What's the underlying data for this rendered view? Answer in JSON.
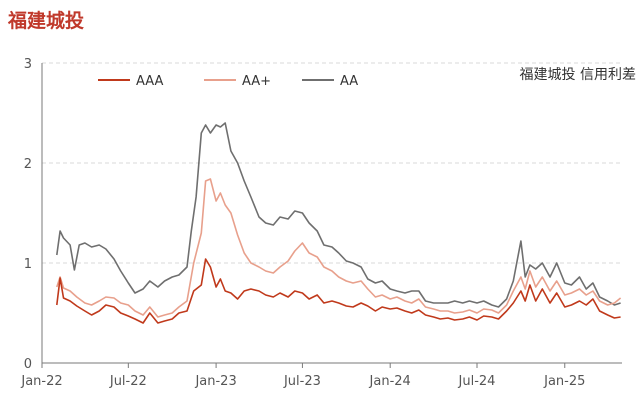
{
  "header": {
    "title": "福建城投"
  },
  "chart_data": {
    "type": "line",
    "title": "",
    "annotation": "福建城投 信用利差",
    "xlabel": "",
    "ylabel": "",
    "ylim": [
      0,
      3
    ],
    "y_ticks": [
      "0",
      "1",
      "2",
      "3"
    ],
    "x_ticks": [
      "Jan-22",
      "Jul-22",
      "Jan-23",
      "Jul-23",
      "Jan-24",
      "Jul-24",
      "Jan-25"
    ],
    "x_tick_dates": [
      "2022-01-01",
      "2022-07-01",
      "2023-01-01",
      "2023-07-01",
      "2024-01-01",
      "2024-07-01",
      "2025-01-01"
    ],
    "xlim": [
      "2022-01-01",
      "2025-05-01"
    ],
    "grid": "horizontal dashed",
    "legend": "top",
    "series": [
      {
        "name": "AAA",
        "color": "#c0391b",
        "points": [
          [
            "2022-02-01",
            0.58
          ],
          [
            "2022-02-08",
            0.85
          ],
          [
            "2022-02-15",
            0.65
          ],
          [
            "2022-03-01",
            0.62
          ],
          [
            "2022-03-15",
            0.57
          ],
          [
            "2022-04-01",
            0.52
          ],
          [
            "2022-04-15",
            0.48
          ],
          [
            "2022-05-01",
            0.52
          ],
          [
            "2022-05-15",
            0.58
          ],
          [
            "2022-06-01",
            0.56
          ],
          [
            "2022-06-15",
            0.5
          ],
          [
            "2022-07-01",
            0.47
          ],
          [
            "2022-07-15",
            0.44
          ],
          [
            "2022-08-01",
            0.4
          ],
          [
            "2022-08-15",
            0.5
          ],
          [
            "2022-09-01",
            0.4
          ],
          [
            "2022-09-15",
            0.42
          ],
          [
            "2022-10-01",
            0.44
          ],
          [
            "2022-10-15",
            0.5
          ],
          [
            "2022-11-01",
            0.52
          ],
          [
            "2022-11-15",
            0.72
          ],
          [
            "2022-12-01",
            0.78
          ],
          [
            "2022-12-10",
            1.04
          ],
          [
            "2022-12-20",
            0.96
          ],
          [
            "2023-01-01",
            0.76
          ],
          [
            "2023-01-10",
            0.84
          ],
          [
            "2023-01-20",
            0.72
          ],
          [
            "2023-02-01",
            0.7
          ],
          [
            "2023-02-15",
            0.64
          ],
          [
            "2023-03-01",
            0.72
          ],
          [
            "2023-03-15",
            0.74
          ],
          [
            "2023-04-01",
            0.72
          ],
          [
            "2023-04-15",
            0.68
          ],
          [
            "2023-05-01",
            0.66
          ],
          [
            "2023-05-15",
            0.7
          ],
          [
            "2023-06-01",
            0.66
          ],
          [
            "2023-06-15",
            0.72
          ],
          [
            "2023-07-01",
            0.7
          ],
          [
            "2023-07-15",
            0.64
          ],
          [
            "2023-08-01",
            0.68
          ],
          [
            "2023-08-15",
            0.6
          ],
          [
            "2023-09-01",
            0.62
          ],
          [
            "2023-09-15",
            0.6
          ],
          [
            "2023-10-01",
            0.57
          ],
          [
            "2023-10-15",
            0.56
          ],
          [
            "2023-11-01",
            0.6
          ],
          [
            "2023-11-15",
            0.57
          ],
          [
            "2023-12-01",
            0.52
          ],
          [
            "2023-12-15",
            0.56
          ],
          [
            "2024-01-01",
            0.54
          ],
          [
            "2024-01-15",
            0.55
          ],
          [
            "2024-02-01",
            0.52
          ],
          [
            "2024-02-15",
            0.5
          ],
          [
            "2024-03-01",
            0.53
          ],
          [
            "2024-03-15",
            0.48
          ],
          [
            "2024-04-01",
            0.46
          ],
          [
            "2024-04-15",
            0.44
          ],
          [
            "2024-05-01",
            0.45
          ],
          [
            "2024-05-15",
            0.43
          ],
          [
            "2024-06-01",
            0.44
          ],
          [
            "2024-06-15",
            0.46
          ],
          [
            "2024-07-01",
            0.43
          ],
          [
            "2024-07-15",
            0.47
          ],
          [
            "2024-08-01",
            0.46
          ],
          [
            "2024-08-15",
            0.44
          ],
          [
            "2024-09-01",
            0.52
          ],
          [
            "2024-09-15",
            0.6
          ],
          [
            "2024-10-01",
            0.72
          ],
          [
            "2024-10-10",
            0.62
          ],
          [
            "2024-10-20",
            0.78
          ],
          [
            "2024-11-01",
            0.62
          ],
          [
            "2024-11-15",
            0.74
          ],
          [
            "2024-12-01",
            0.6
          ],
          [
            "2024-12-15",
            0.7
          ],
          [
            "2025-01-01",
            0.56
          ],
          [
            "2025-01-15",
            0.58
          ],
          [
            "2025-02-01",
            0.62
          ],
          [
            "2025-02-15",
            0.58
          ],
          [
            "2025-03-01",
            0.64
          ],
          [
            "2025-03-15",
            0.52
          ],
          [
            "2025-04-01",
            0.48
          ],
          [
            "2025-04-15",
            0.45
          ],
          [
            "2025-04-28",
            0.46
          ]
        ]
      },
      {
        "name": "AA+",
        "color": "#e8a08c",
        "points": [
          [
            "2022-02-01",
            0.76
          ],
          [
            "2022-02-08",
            0.86
          ],
          [
            "2022-02-15",
            0.75
          ],
          [
            "2022-03-01",
            0.72
          ],
          [
            "2022-03-15",
            0.66
          ],
          [
            "2022-04-01",
            0.6
          ],
          [
            "2022-04-15",
            0.58
          ],
          [
            "2022-05-01",
            0.62
          ],
          [
            "2022-05-15",
            0.66
          ],
          [
            "2022-06-01",
            0.65
          ],
          [
            "2022-06-15",
            0.6
          ],
          [
            "2022-07-01",
            0.58
          ],
          [
            "2022-07-15",
            0.52
          ],
          [
            "2022-08-01",
            0.48
          ],
          [
            "2022-08-15",
            0.56
          ],
          [
            "2022-09-01",
            0.46
          ],
          [
            "2022-09-15",
            0.48
          ],
          [
            "2022-10-01",
            0.5
          ],
          [
            "2022-10-15",
            0.56
          ],
          [
            "2022-11-01",
            0.62
          ],
          [
            "2022-11-15",
            1.0
          ],
          [
            "2022-12-01",
            1.3
          ],
          [
            "2022-12-10",
            1.82
          ],
          [
            "2022-12-20",
            1.84
          ],
          [
            "2023-01-01",
            1.62
          ],
          [
            "2023-01-10",
            1.7
          ],
          [
            "2023-01-20",
            1.58
          ],
          [
            "2023-02-01",
            1.5
          ],
          [
            "2023-02-15",
            1.28
          ],
          [
            "2023-03-01",
            1.1
          ],
          [
            "2023-03-15",
            1.0
          ],
          [
            "2023-04-01",
            0.96
          ],
          [
            "2023-04-15",
            0.92
          ],
          [
            "2023-05-01",
            0.9
          ],
          [
            "2023-05-15",
            0.96
          ],
          [
            "2023-06-01",
            1.02
          ],
          [
            "2023-06-15",
            1.12
          ],
          [
            "2023-07-01",
            1.2
          ],
          [
            "2023-07-15",
            1.1
          ],
          [
            "2023-08-01",
            1.06
          ],
          [
            "2023-08-15",
            0.96
          ],
          [
            "2023-09-01",
            0.92
          ],
          [
            "2023-09-15",
            0.86
          ],
          [
            "2023-10-01",
            0.82
          ],
          [
            "2023-10-15",
            0.8
          ],
          [
            "2023-11-01",
            0.82
          ],
          [
            "2023-11-15",
            0.74
          ],
          [
            "2023-12-01",
            0.66
          ],
          [
            "2023-12-15",
            0.68
          ],
          [
            "2024-01-01",
            0.64
          ],
          [
            "2024-01-15",
            0.66
          ],
          [
            "2024-02-01",
            0.62
          ],
          [
            "2024-02-15",
            0.6
          ],
          [
            "2024-03-01",
            0.64
          ],
          [
            "2024-03-15",
            0.56
          ],
          [
            "2024-04-01",
            0.54
          ],
          [
            "2024-04-15",
            0.52
          ],
          [
            "2024-05-01",
            0.52
          ],
          [
            "2024-05-15",
            0.5
          ],
          [
            "2024-06-01",
            0.51
          ],
          [
            "2024-06-15",
            0.53
          ],
          [
            "2024-07-01",
            0.5
          ],
          [
            "2024-07-15",
            0.54
          ],
          [
            "2024-08-01",
            0.53
          ],
          [
            "2024-08-15",
            0.5
          ],
          [
            "2024-09-01",
            0.58
          ],
          [
            "2024-09-15",
            0.72
          ],
          [
            "2024-10-01",
            0.86
          ],
          [
            "2024-10-10",
            0.74
          ],
          [
            "2024-10-20",
            0.92
          ],
          [
            "2024-11-01",
            0.76
          ],
          [
            "2024-11-15",
            0.86
          ],
          [
            "2024-12-01",
            0.72
          ],
          [
            "2024-12-15",
            0.82
          ],
          [
            "2025-01-01",
            0.68
          ],
          [
            "2025-01-15",
            0.7
          ],
          [
            "2025-02-01",
            0.74
          ],
          [
            "2025-02-15",
            0.68
          ],
          [
            "2025-03-01",
            0.72
          ],
          [
            "2025-03-15",
            0.62
          ],
          [
            "2025-04-01",
            0.58
          ],
          [
            "2025-04-15",
            0.6
          ],
          [
            "2025-04-28",
            0.65
          ]
        ]
      },
      {
        "name": "AA",
        "color": "#6f6f6f",
        "points": [
          [
            "2022-02-01",
            1.08
          ],
          [
            "2022-02-08",
            1.32
          ],
          [
            "2022-02-15",
            1.25
          ],
          [
            "2022-03-01",
            1.18
          ],
          [
            "2022-03-10",
            0.93
          ],
          [
            "2022-03-20",
            1.18
          ],
          [
            "2022-04-01",
            1.2
          ],
          [
            "2022-04-15",
            1.16
          ],
          [
            "2022-05-01",
            1.18
          ],
          [
            "2022-05-15",
            1.14
          ],
          [
            "2022-06-01",
            1.04
          ],
          [
            "2022-06-15",
            0.92
          ],
          [
            "2022-07-01",
            0.8
          ],
          [
            "2022-07-15",
            0.7
          ],
          [
            "2022-08-01",
            0.74
          ],
          [
            "2022-08-15",
            0.82
          ],
          [
            "2022-09-01",
            0.76
          ],
          [
            "2022-09-15",
            0.82
          ],
          [
            "2022-10-01",
            0.86
          ],
          [
            "2022-10-15",
            0.88
          ],
          [
            "2022-11-01",
            0.96
          ],
          [
            "2022-11-10",
            1.32
          ],
          [
            "2022-11-20",
            1.66
          ],
          [
            "2022-12-01",
            2.3
          ],
          [
            "2022-12-10",
            2.38
          ],
          [
            "2022-12-20",
            2.3
          ],
          [
            "2023-01-01",
            2.38
          ],
          [
            "2023-01-10",
            2.36
          ],
          [
            "2023-01-20",
            2.4
          ],
          [
            "2023-02-01",
            2.12
          ],
          [
            "2023-02-15",
            2.0
          ],
          [
            "2023-03-01",
            1.82
          ],
          [
            "2023-03-15",
            1.66
          ],
          [
            "2023-04-01",
            1.46
          ],
          [
            "2023-04-15",
            1.4
          ],
          [
            "2023-05-01",
            1.38
          ],
          [
            "2023-05-15",
            1.46
          ],
          [
            "2023-06-01",
            1.44
          ],
          [
            "2023-06-15",
            1.52
          ],
          [
            "2023-07-01",
            1.5
          ],
          [
            "2023-07-15",
            1.4
          ],
          [
            "2023-08-01",
            1.32
          ],
          [
            "2023-08-15",
            1.18
          ],
          [
            "2023-09-01",
            1.16
          ],
          [
            "2023-09-15",
            1.1
          ],
          [
            "2023-10-01",
            1.02
          ],
          [
            "2023-10-15",
            1.0
          ],
          [
            "2023-11-01",
            0.96
          ],
          [
            "2023-11-15",
            0.84
          ],
          [
            "2023-12-01",
            0.8
          ],
          [
            "2023-12-15",
            0.82
          ],
          [
            "2024-01-01",
            0.74
          ],
          [
            "2024-01-15",
            0.72
          ],
          [
            "2024-02-01",
            0.7
          ],
          [
            "2024-02-15",
            0.72
          ],
          [
            "2024-03-01",
            0.72
          ],
          [
            "2024-03-15",
            0.62
          ],
          [
            "2024-04-01",
            0.6
          ],
          [
            "2024-04-15",
            0.6
          ],
          [
            "2024-05-01",
            0.6
          ],
          [
            "2024-05-15",
            0.62
          ],
          [
            "2024-06-01",
            0.6
          ],
          [
            "2024-06-15",
            0.62
          ],
          [
            "2024-07-01",
            0.6
          ],
          [
            "2024-07-15",
            0.62
          ],
          [
            "2024-08-01",
            0.58
          ],
          [
            "2024-08-15",
            0.56
          ],
          [
            "2024-09-01",
            0.64
          ],
          [
            "2024-09-15",
            0.82
          ],
          [
            "2024-10-01",
            1.22
          ],
          [
            "2024-10-10",
            0.86
          ],
          [
            "2024-10-20",
            0.98
          ],
          [
            "2024-11-01",
            0.94
          ],
          [
            "2024-11-15",
            1.0
          ],
          [
            "2024-12-01",
            0.86
          ],
          [
            "2024-12-15",
            1.0
          ],
          [
            "2025-01-01",
            0.8
          ],
          [
            "2025-01-15",
            0.78
          ],
          [
            "2025-02-01",
            0.86
          ],
          [
            "2025-02-15",
            0.74
          ],
          [
            "2025-03-01",
            0.8
          ],
          [
            "2025-03-15",
            0.66
          ],
          [
            "2025-04-01",
            0.62
          ],
          [
            "2025-04-15",
            0.58
          ],
          [
            "2025-04-28",
            0.6
          ]
        ]
      }
    ]
  }
}
